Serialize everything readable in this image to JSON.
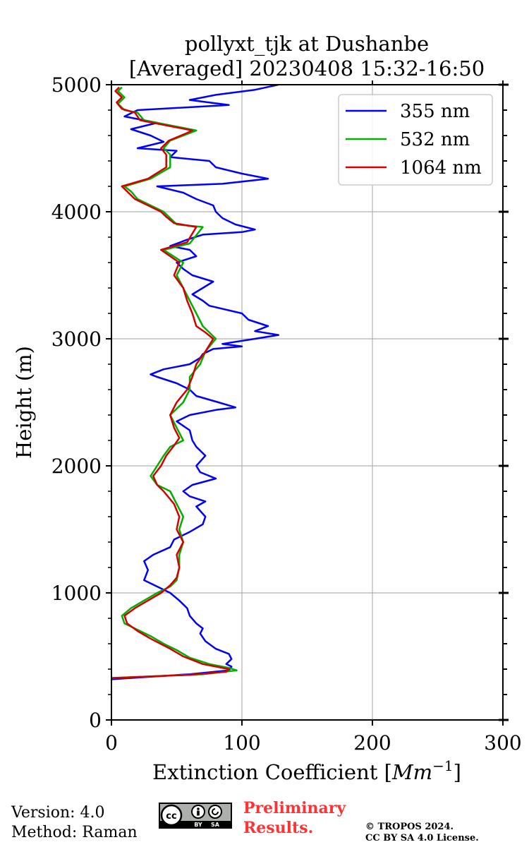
{
  "chart_data": {
    "type": "line",
    "title_line1": "pollyxt_tjk at Dushanbe",
    "title_line2": "[Averaged] 20230408 15:32-16:50",
    "xlabel": "Extinction Coefficient [",
    "xlabel_unit": "Mm",
    "xlabel_exp": "−1",
    "xlabel_close": "]",
    "ylabel": "Height (m)",
    "xlim": [
      0,
      300
    ],
    "ylim": [
      0,
      5000
    ],
    "x_ticks": [
      0,
      100,
      200,
      300
    ],
    "x_tick_labels": [
      "0",
      "100",
      "200",
      "300"
    ],
    "y_ticks": [
      0,
      1000,
      2000,
      3000,
      4000,
      5000
    ],
    "y_tick_labels": [
      "0",
      "1000",
      "2000",
      "3000",
      "4000",
      "5000"
    ],
    "grid": true,
    "legend_position": "top-right",
    "series": [
      {
        "name": "355 nm",
        "color": "#0000ff",
        "points": [
          [
            0,
            320
          ],
          [
            60,
            360
          ],
          [
            90,
            390
          ],
          [
            92,
            420
          ],
          [
            88,
            440
          ],
          [
            92,
            480
          ],
          [
            90,
            520
          ],
          [
            80,
            560
          ],
          [
            72,
            620
          ],
          [
            68,
            680
          ],
          [
            70,
            720
          ],
          [
            65,
            760
          ],
          [
            60,
            820
          ],
          [
            58,
            880
          ],
          [
            52,
            940
          ],
          [
            45,
            1000
          ],
          [
            35,
            1050
          ],
          [
            25,
            1100
          ],
          [
            28,
            1180
          ],
          [
            25,
            1250
          ],
          [
            32,
            1300
          ],
          [
            45,
            1360
          ],
          [
            48,
            1420
          ],
          [
            60,
            1480
          ],
          [
            70,
            1540
          ],
          [
            72,
            1600
          ],
          [
            65,
            1680
          ],
          [
            72,
            1720
          ],
          [
            60,
            1760
          ],
          [
            55,
            1800
          ],
          [
            62,
            1850
          ],
          [
            80,
            1900
          ],
          [
            68,
            1950
          ],
          [
            65,
            2000
          ],
          [
            72,
            2080
          ],
          [
            65,
            2150
          ],
          [
            62,
            2200
          ],
          [
            60,
            2280
          ],
          [
            50,
            2350
          ],
          [
            60,
            2400
          ],
          [
            80,
            2440
          ],
          [
            95,
            2460
          ],
          [
            82,
            2500
          ],
          [
            65,
            2550
          ],
          [
            60,
            2600
          ],
          [
            50,
            2650
          ],
          [
            35,
            2700
          ],
          [
            30,
            2720
          ],
          [
            40,
            2760
          ],
          [
            60,
            2800
          ],
          [
            68,
            2850
          ],
          [
            70,
            2880
          ],
          [
            78,
            2920
          ],
          [
            100,
            2940
          ],
          [
            85,
            2960
          ],
          [
            110,
            3000
          ],
          [
            128,
            3030
          ],
          [
            110,
            3060
          ],
          [
            120,
            3100
          ],
          [
            105,
            3150
          ],
          [
            100,
            3200
          ],
          [
            75,
            3260
          ],
          [
            70,
            3300
          ],
          [
            62,
            3350
          ],
          [
            70,
            3400
          ],
          [
            78,
            3450
          ],
          [
            62,
            3500
          ],
          [
            55,
            3550
          ],
          [
            50,
            3600
          ],
          [
            65,
            3650
          ],
          [
            60,
            3700
          ],
          [
            45,
            3730
          ],
          [
            58,
            3780
          ],
          [
            70,
            3820
          ],
          [
            100,
            3840
          ],
          [
            110,
            3860
          ],
          [
            95,
            3900
          ],
          [
            85,
            3950
          ],
          [
            80,
            4000
          ],
          [
            78,
            4050
          ],
          [
            65,
            4100
          ],
          [
            55,
            4150
          ],
          [
            35,
            4200
          ],
          [
            85,
            4220
          ],
          [
            120,
            4260
          ],
          [
            100,
            4300
          ],
          [
            80,
            4350
          ],
          [
            75,
            4400
          ],
          [
            45,
            4430
          ],
          [
            50,
            4480
          ],
          [
            20,
            4500
          ],
          [
            40,
            4550
          ],
          [
            30,
            4600
          ],
          [
            15,
            4650
          ],
          [
            35,
            4700
          ],
          [
            10,
            4750
          ],
          [
            20,
            4800
          ],
          [
            90,
            4840
          ],
          [
            60,
            4880
          ],
          [
            80,
            4920
          ],
          [
            110,
            4960
          ],
          [
            128,
            5000
          ]
        ]
      },
      {
        "name": "532 nm",
        "color": "#00b000",
        "points": [
          [
            0,
            330
          ],
          [
            70,
            360
          ],
          [
            96,
            390
          ],
          [
            90,
            410
          ],
          [
            75,
            440
          ],
          [
            60,
            490
          ],
          [
            50,
            550
          ],
          [
            40,
            600
          ],
          [
            30,
            660
          ],
          [
            20,
            710
          ],
          [
            10,
            760
          ],
          [
            8,
            820
          ],
          [
            15,
            880
          ],
          [
            25,
            940
          ],
          [
            35,
            1000
          ],
          [
            45,
            1050
          ],
          [
            50,
            1100
          ],
          [
            52,
            1200
          ],
          [
            52,
            1300
          ],
          [
            55,
            1400
          ],
          [
            52,
            1500
          ],
          [
            55,
            1600
          ],
          [
            50,
            1700
          ],
          [
            45,
            1800
          ],
          [
            35,
            1850
          ],
          [
            30,
            1920
          ],
          [
            35,
            2000
          ],
          [
            40,
            2080
          ],
          [
            45,
            2150
          ],
          [
            55,
            2200
          ],
          [
            50,
            2300
          ],
          [
            45,
            2400
          ],
          [
            55,
            2500
          ],
          [
            60,
            2600
          ],
          [
            60,
            2700
          ],
          [
            68,
            2800
          ],
          [
            72,
            2900
          ],
          [
            80,
            3000
          ],
          [
            75,
            3050
          ],
          [
            70,
            3100
          ],
          [
            65,
            3200
          ],
          [
            60,
            3300
          ],
          [
            55,
            3400
          ],
          [
            50,
            3500
          ],
          [
            55,
            3600
          ],
          [
            40,
            3700
          ],
          [
            60,
            3750
          ],
          [
            70,
            3880
          ],
          [
            50,
            3900
          ],
          [
            45,
            3950
          ],
          [
            40,
            4000
          ],
          [
            30,
            4050
          ],
          [
            20,
            4100
          ],
          [
            15,
            4160
          ],
          [
            10,
            4200
          ],
          [
            30,
            4260
          ],
          [
            45,
            4350
          ],
          [
            45,
            4450
          ],
          [
            40,
            4500
          ],
          [
            45,
            4560
          ],
          [
            60,
            4620
          ],
          [
            65,
            4640
          ],
          [
            45,
            4680
          ],
          [
            25,
            4720
          ],
          [
            20,
            4780
          ],
          [
            10,
            4800
          ],
          [
            5,
            4850
          ],
          [
            10,
            4900
          ],
          [
            5,
            4950
          ],
          [
            8,
            4980
          ]
        ]
      },
      {
        "name": "1064 nm",
        "color": "#d40000",
        "points": [
          [
            0,
            330
          ],
          [
            60,
            355
          ],
          [
            88,
            380
          ],
          [
            90,
            400
          ],
          [
            70,
            440
          ],
          [
            55,
            500
          ],
          [
            45,
            560
          ],
          [
            30,
            640
          ],
          [
            20,
            700
          ],
          [
            12,
            760
          ],
          [
            10,
            820
          ],
          [
            18,
            880
          ],
          [
            28,
            940
          ],
          [
            38,
            1000
          ],
          [
            45,
            1060
          ],
          [
            50,
            1120
          ],
          [
            52,
            1200
          ],
          [
            50,
            1300
          ],
          [
            55,
            1400
          ],
          [
            50,
            1500
          ],
          [
            52,
            1600
          ],
          [
            48,
            1700
          ],
          [
            40,
            1800
          ],
          [
            35,
            1850
          ],
          [
            32,
            1920
          ],
          [
            38,
            2000
          ],
          [
            42,
            2080
          ],
          [
            48,
            2160
          ],
          [
            52,
            2220
          ],
          [
            48,
            2300
          ],
          [
            45,
            2400
          ],
          [
            50,
            2500
          ],
          [
            58,
            2600
          ],
          [
            62,
            2700
          ],
          [
            65,
            2800
          ],
          [
            72,
            2900
          ],
          [
            78,
            3000
          ],
          [
            72,
            3050
          ],
          [
            65,
            3100
          ],
          [
            62,
            3200
          ],
          [
            58,
            3300
          ],
          [
            55,
            3400
          ],
          [
            48,
            3500
          ],
          [
            52,
            3600
          ],
          [
            38,
            3700
          ],
          [
            58,
            3760
          ],
          [
            65,
            3880
          ],
          [
            48,
            3910
          ],
          [
            42,
            3960
          ],
          [
            38,
            4000
          ],
          [
            28,
            4050
          ],
          [
            18,
            4100
          ],
          [
            12,
            4160
          ],
          [
            8,
            4200
          ],
          [
            28,
            4260
          ],
          [
            42,
            4350
          ],
          [
            42,
            4450
          ],
          [
            38,
            4500
          ],
          [
            44,
            4560
          ],
          [
            58,
            4620
          ],
          [
            62,
            4640
          ],
          [
            42,
            4680
          ],
          [
            22,
            4720
          ],
          [
            18,
            4780
          ],
          [
            8,
            4810
          ],
          [
            4,
            4860
          ],
          [
            8,
            4900
          ],
          [
            3,
            4950
          ],
          [
            6,
            4980
          ]
        ]
      }
    ]
  },
  "footer": {
    "version": "Version: 4.0",
    "method": "Method: Raman",
    "preliminary_line1": "Preliminary",
    "preliminary_line2": "Results.",
    "copyright_line1": "© TROPOS 2024.",
    "copyright_line2": "CC BY SA 4.0 License.",
    "cc_badge_label": "cc",
    "cc_badge_by": "BY",
    "cc_badge_sa": "SA"
  }
}
